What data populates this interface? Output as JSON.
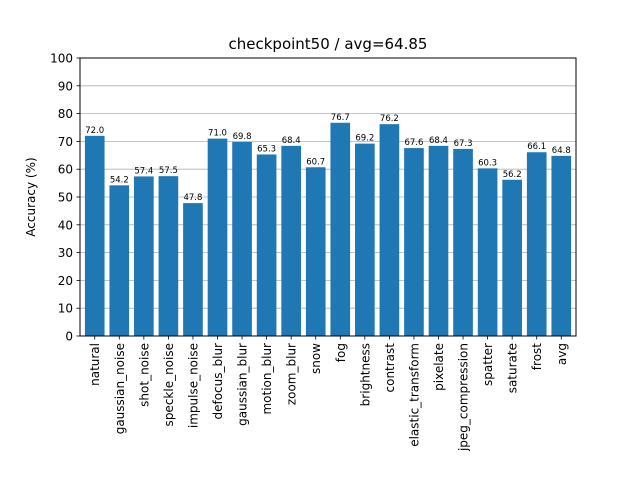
{
  "chart_data": {
    "type": "bar",
    "title": "checkpoint50 / avg=64.85",
    "xlabel": "",
    "ylabel": "Accuracy (%)",
    "ylim": [
      0,
      100
    ],
    "yticks": [
      "0",
      "10",
      "20",
      "30",
      "40",
      "50",
      "60",
      "70",
      "80",
      "90",
      "100"
    ],
    "grid": "horizontal",
    "bar_color": "#1f77b4",
    "categories": [
      "natural",
      "gaussian_noise",
      "shot_noise",
      "speckle_noise",
      "impulse_noise",
      "defocus_blur",
      "gaussian_blur",
      "motion_blur",
      "zoom_blur",
      "snow",
      "fog",
      "brightness",
      "contrast",
      "elastic_transform",
      "pixelate",
      "jpeg_compression",
      "spatter",
      "saturate",
      "frost",
      "avg"
    ],
    "values": [
      72.0,
      54.2,
      57.4,
      57.5,
      47.8,
      71.0,
      69.8,
      65.3,
      68.4,
      60.7,
      76.7,
      69.2,
      76.2,
      67.6,
      68.4,
      67.3,
      60.3,
      56.2,
      66.1,
      64.8
    ],
    "value_labels": [
      "72.0",
      "54.2",
      "57.4",
      "57.5",
      "47.8",
      "71.0",
      "69.8",
      "65.3",
      "68.4",
      "60.7",
      "76.7",
      "69.2",
      "76.2",
      "67.6",
      "68.4",
      "67.3",
      "60.3",
      "56.2",
      "66.1",
      "64.8"
    ]
  }
}
